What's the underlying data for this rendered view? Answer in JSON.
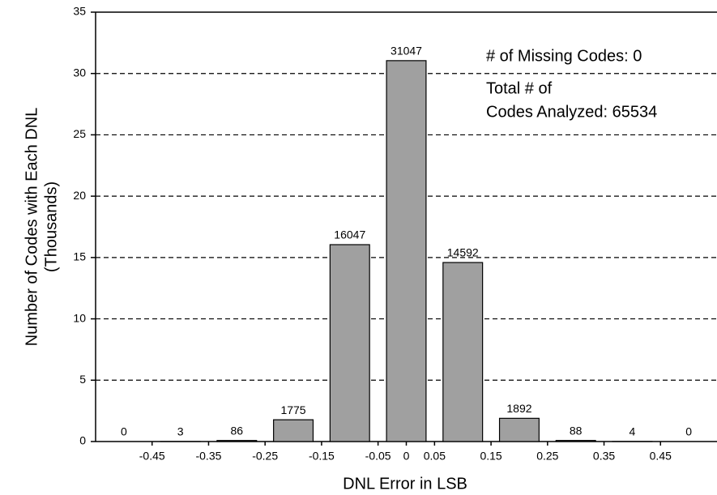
{
  "chart_data": {
    "type": "bar",
    "x": [
      -0.5,
      -0.4,
      -0.3,
      -0.2,
      -0.1,
      0,
      0.1,
      0.2,
      0.3,
      0.4,
      0.5
    ],
    "values": [
      0,
      0.003,
      0.086,
      1.775,
      16.047,
      31.047,
      14.592,
      1.892,
      0.088,
      0.004,
      0
    ],
    "value_labels": [
      "0",
      "3",
      "86",
      "1775",
      "16047",
      "31047",
      "14592",
      "1892",
      "88",
      "4",
      "0"
    ],
    "color": "#a0a0a0",
    "xlabel": "DNL Error in LSB",
    "ylabel": [
      "Number of Codes with Each DNL",
      "(Thousands)"
    ],
    "xlim": [
      -0.55,
      0.55
    ],
    "xticks": [
      -0.45,
      -0.35,
      -0.25,
      -0.15,
      -0.05,
      0,
      0.05,
      0.15,
      0.25,
      0.35,
      0.45
    ],
    "ylim": [
      0,
      35
    ],
    "yticks": [
      0,
      5,
      10,
      15,
      20,
      25,
      30,
      35
    ],
    "grid": true,
    "annotations": [
      "# of Missing Codes: 0",
      "Total # of",
      "Codes Analyzed: 65534"
    ]
  }
}
